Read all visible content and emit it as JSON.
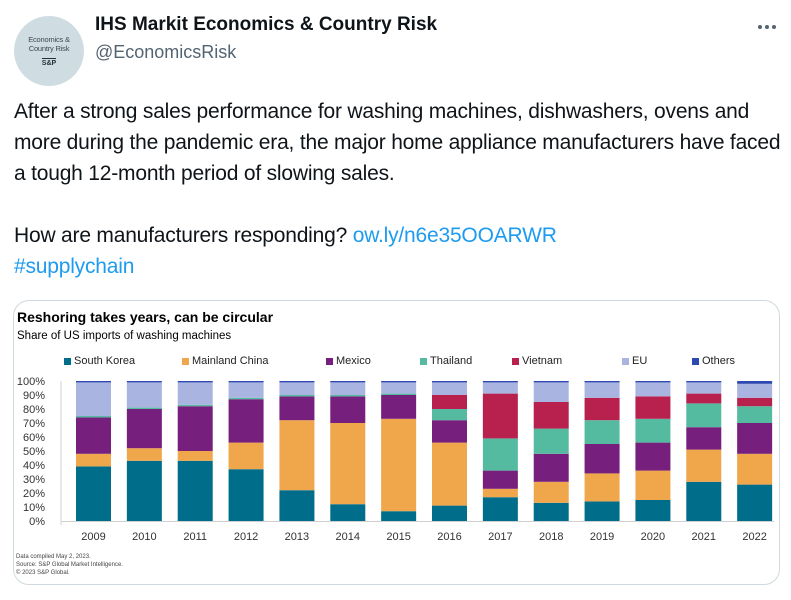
{
  "author": {
    "display_name": "IHS Markit Economics & Country Risk",
    "handle": "@EconomicsRisk",
    "avatar_text_line1": "Economics &",
    "avatar_text_line2": "Country Risk",
    "avatar_brand": "S&P"
  },
  "more_menu_icon": "more-horizontal-icon",
  "tweet": {
    "paragraph1": "After a strong sales performance for washing machines, dishwashers, ovens and more during the pandemic era, the major home appliance manufacturers have faced a tough 12-month period of slowing sales.",
    "paragraph2_text": "How are manufacturers responding? ",
    "link": "ow.ly/n6e35OOARWR",
    "hashtag": "#supplychain"
  },
  "colors": {
    "link": "#1d9bf0",
    "South Korea": "#006e8a",
    "Mainland China": "#f0a64b",
    "Mexico": "#761f7d",
    "Thailand": "#55bba0",
    "Vietnam": "#b8204e",
    "EU": "#a9b4e0",
    "Others": "#2d48b0"
  },
  "footnotes": [
    "Data compiled May 2, 2023.",
    "Source: S&P Global Market Intelligence.",
    "© 2023 S&P Global."
  ],
  "chart_data": {
    "type": "bar",
    "stacked": true,
    "title": "Reshoring takes years, can be circular",
    "subtitle": "Share of US imports of washing machines",
    "xlabel": "",
    "ylabel": "",
    "ylim": [
      0,
      100
    ],
    "yticks": [
      "0%",
      "10%",
      "20%",
      "30%",
      "40%",
      "50%",
      "60%",
      "70%",
      "80%",
      "90%",
      "100%"
    ],
    "legend_position": "top",
    "grid": false,
    "categories": [
      "2009",
      "2010",
      "2011",
      "2012",
      "2013",
      "2014",
      "2015",
      "2016",
      "2017",
      "2018",
      "2019",
      "2020",
      "2021",
      "2022"
    ],
    "series": [
      {
        "name": "South Korea",
        "values": [
          39,
          43,
          43,
          37,
          22,
          12,
          7,
          11,
          17,
          13,
          14,
          15,
          28,
          26
        ]
      },
      {
        "name": "Mainland China",
        "values": [
          9,
          9,
          7,
          19,
          50,
          58,
          66,
          45,
          6,
          15,
          20,
          21,
          23,
          22
        ]
      },
      {
        "name": "Mexico",
        "values": [
          26,
          28,
          32,
          31,
          17,
          19,
          17,
          16,
          13,
          20,
          21,
          20,
          16,
          22
        ]
      },
      {
        "name": "Thailand",
        "values": [
          1,
          1,
          1,
          1,
          1,
          1,
          1,
          8,
          23,
          18,
          17,
          17,
          17,
          12
        ]
      },
      {
        "name": "Vietnam",
        "values": [
          0,
          0,
          0,
          0,
          0,
          0,
          0,
          10,
          32,
          19,
          16,
          16,
          7,
          6
        ]
      },
      {
        "name": "EU",
        "values": [
          24,
          18,
          16,
          11,
          9,
          9,
          8,
          9,
          8,
          14,
          11,
          10,
          8,
          10
        ]
      },
      {
        "name": "Others",
        "values": [
          1,
          1,
          1,
          1,
          1,
          1,
          1,
          1,
          1,
          1,
          1,
          1,
          1,
          2
        ]
      }
    ]
  }
}
